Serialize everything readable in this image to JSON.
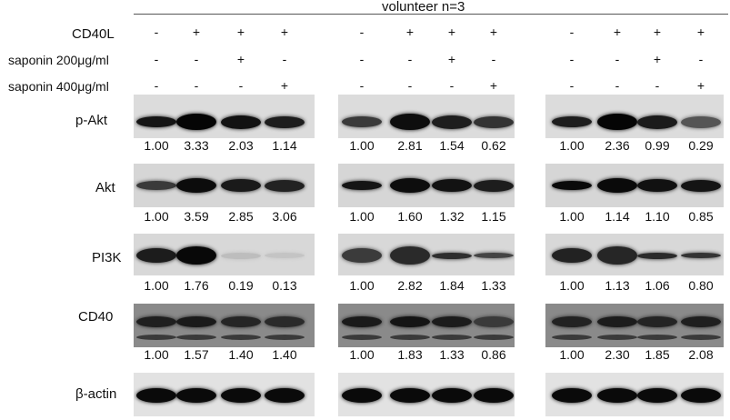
{
  "header": {
    "title": "volunteer n=3"
  },
  "conditions": [
    {
      "label": "CD40L",
      "groups": [
        [
          "-",
          "+",
          "+",
          "+"
        ],
        [
          "-",
          "+",
          "+",
          "+"
        ],
        [
          "-",
          "+",
          "+",
          "+"
        ]
      ]
    },
    {
      "label": "saponin 200μg/ml",
      "groups": [
        [
          "-",
          "-",
          "+",
          "-"
        ],
        [
          "-",
          "-",
          "+",
          "-"
        ],
        [
          "-",
          "-",
          "+",
          "-"
        ]
      ]
    },
    {
      "label": "saponin 400μg/ml",
      "groups": [
        [
          "-",
          "-",
          "-",
          "+"
        ],
        [
          "-",
          "-",
          "-",
          "+"
        ],
        [
          "-",
          "-",
          "-",
          "+"
        ]
      ]
    }
  ],
  "blots": [
    {
      "label": "p-Akt",
      "panel_color": "#dcdcdc",
      "values": [
        [
          "1.00",
          "3.33",
          "2.03",
          "1.14"
        ],
        [
          "1.00",
          "2.81",
          "1.54",
          "0.62"
        ],
        [
          "1.00",
          "2.36",
          "0.99",
          "0.29"
        ]
      ]
    },
    {
      "label": "Akt",
      "panel_color": "#d6d6d6",
      "values": [
        [
          "1.00",
          "3.59",
          "2.85",
          "3.06"
        ],
        [
          "1.00",
          "1.60",
          "1.32",
          "1.15"
        ],
        [
          "1.00",
          "1.14",
          "1.10",
          "0.85"
        ]
      ]
    },
    {
      "label": "PI3K",
      "panel_color": "#d8d8d8",
      "values": [
        [
          "1.00",
          "1.76",
          "0.19",
          "0.13"
        ],
        [
          "1.00",
          "2.82",
          "1.84",
          "1.33"
        ],
        [
          "1.00",
          "1.13",
          "1.06",
          "0.80"
        ]
      ]
    },
    {
      "label": "CD40",
      "panel_color": "#8a8a8a",
      "values": [
        [
          "1.00",
          "1.57",
          "1.40",
          "1.40"
        ],
        [
          "1.00",
          "1.83",
          "1.33",
          "0.86"
        ],
        [
          "1.00",
          "2.30",
          "1.85",
          "2.08"
        ]
      ]
    },
    {
      "label": "β-actin",
      "panel_color": "#e2e2e2",
      "values": []
    }
  ]
}
